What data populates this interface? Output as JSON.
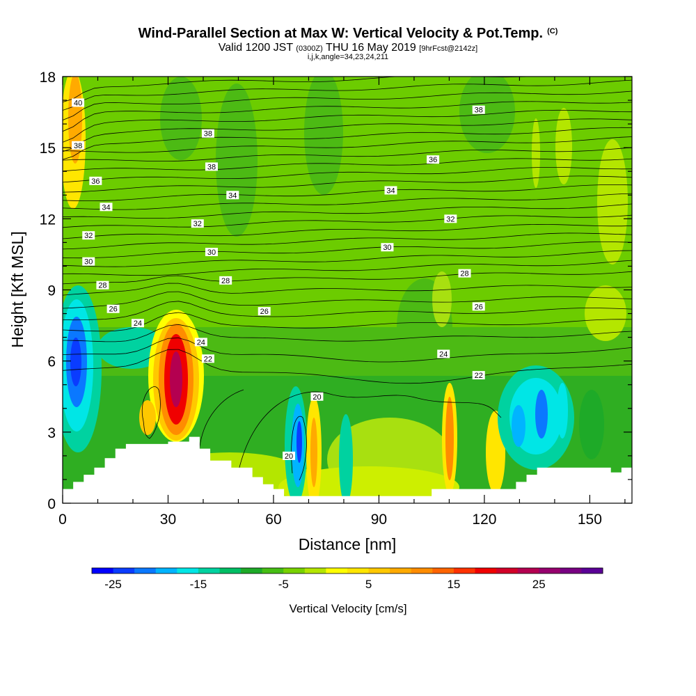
{
  "header": {
    "title": "Wind-Parallel Section at Max W: Vertical Velocity & Pot.Temp.",
    "copyright": "(C)",
    "valid_prefix": "Valid 1200 JST",
    "valid_utc": "(0300Z)",
    "valid_date": "THU 16 May 2019",
    "forecast": "[9hrFcst@2142z]",
    "ijk": "i,j,k,angle=34,23,24,211"
  },
  "chart_data": {
    "type": "heatmap",
    "xlabel": "Distance [nm]",
    "ylabel": "Height [Kft MSL]",
    "xlim": [
      0,
      162
    ],
    "ylim": [
      0,
      18
    ],
    "x_ticks": [
      0,
      30,
      60,
      90,
      120,
      150
    ],
    "y_ticks": [
      0,
      3,
      6,
      9,
      12,
      15,
      18
    ],
    "colorbar": {
      "label": "Vertical Velocity [cm/s]",
      "tick_values": [
        -25,
        -15,
        -5,
        5,
        15,
        25
      ],
      "tick_labels": [
        "-25",
        "-15",
        "-5",
        "5",
        "15",
        "25"
      ],
      "colors": [
        "#0000ff",
        "#0a3cff",
        "#0a78ff",
        "#00b4ff",
        "#00e6e6",
        "#00d2a0",
        "#00be64",
        "#1eaa28",
        "#46be14",
        "#78d200",
        "#b4e600",
        "#ffff00",
        "#ffe600",
        "#ffc800",
        "#ffaa00",
        "#ff8c00",
        "#ff6400",
        "#ff3200",
        "#f00000",
        "#d20028",
        "#b40050",
        "#96006e",
        "#780082",
        "#5a0096"
      ]
    },
    "theta_contour_labels": [
      {
        "x": 2,
        "y": 16.9,
        "label": "40"
      },
      {
        "x": 2,
        "y": 15.1,
        "label": "38"
      },
      {
        "x": 39,
        "y": 15.6,
        "label": "38"
      },
      {
        "x": 40,
        "y": 14.2,
        "label": "38"
      },
      {
        "x": 116,
        "y": 16.6,
        "label": "38"
      },
      {
        "x": 7,
        "y": 13.6,
        "label": "36"
      },
      {
        "x": 103,
        "y": 14.5,
        "label": "36"
      },
      {
        "x": 10,
        "y": 12.5,
        "label": "34"
      },
      {
        "x": 46,
        "y": 13.0,
        "label": "34"
      },
      {
        "x": 91,
        "y": 13.2,
        "label": "34"
      },
      {
        "x": 5,
        "y": 11.3,
        "label": "32"
      },
      {
        "x": 36,
        "y": 11.8,
        "label": "32"
      },
      {
        "x": 108,
        "y": 12.0,
        "label": "32"
      },
      {
        "x": 5,
        "y": 10.2,
        "label": "30"
      },
      {
        "x": 40,
        "y": 10.6,
        "label": "30"
      },
      {
        "x": 90,
        "y": 10.8,
        "label": "30"
      },
      {
        "x": 9,
        "y": 9.2,
        "label": "28"
      },
      {
        "x": 44,
        "y": 9.4,
        "label": "28"
      },
      {
        "x": 112,
        "y": 9.7,
        "label": "28"
      },
      {
        "x": 12,
        "y": 8.2,
        "label": "26"
      },
      {
        "x": 55,
        "y": 8.1,
        "label": "26"
      },
      {
        "x": 116,
        "y": 8.3,
        "label": "26"
      },
      {
        "x": 19,
        "y": 7.6,
        "label": "24"
      },
      {
        "x": 37,
        "y": 6.8,
        "label": "24"
      },
      {
        "x": 106,
        "y": 6.3,
        "label": "24"
      },
      {
        "x": 39,
        "y": 6.1,
        "label": "22"
      },
      {
        "x": 116,
        "y": 5.4,
        "label": "22"
      },
      {
        "x": 70,
        "y": 4.5,
        "label": "20"
      },
      {
        "x": 62,
        "y": 2.0,
        "label": "20"
      }
    ],
    "terrain_height_kft": [
      {
        "x": 0,
        "y": 0.6
      },
      {
        "x": 3,
        "y": 0.9
      },
      {
        "x": 6,
        "y": 1.2
      },
      {
        "x": 9,
        "y": 1.5
      },
      {
        "x": 12,
        "y": 1.9
      },
      {
        "x": 15,
        "y": 2.3
      },
      {
        "x": 18,
        "y": 2.5
      },
      {
        "x": 30,
        "y": 2.6
      },
      {
        "x": 36,
        "y": 2.8
      },
      {
        "x": 39,
        "y": 2.3
      },
      {
        "x": 42,
        "y": 1.8
      },
      {
        "x": 48,
        "y": 1.5
      },
      {
        "x": 54,
        "y": 1.1
      },
      {
        "x": 57,
        "y": 0.8
      },
      {
        "x": 60,
        "y": 0.6
      },
      {
        "x": 63,
        "y": 0.3
      },
      {
        "x": 72,
        "y": 0.3
      },
      {
        "x": 102,
        "y": 0.3
      },
      {
        "x": 105,
        "y": 0.6
      },
      {
        "x": 126,
        "y": 0.6
      },
      {
        "x": 129,
        "y": 0.9
      },
      {
        "x": 132,
        "y": 1.2
      },
      {
        "x": 135,
        "y": 1.5
      },
      {
        "x": 150,
        "y": 1.5
      },
      {
        "x": 156,
        "y": 1.3
      },
      {
        "x": 159,
        "y": 1.5
      },
      {
        "x": 162,
        "y": 1.5
      }
    ]
  }
}
